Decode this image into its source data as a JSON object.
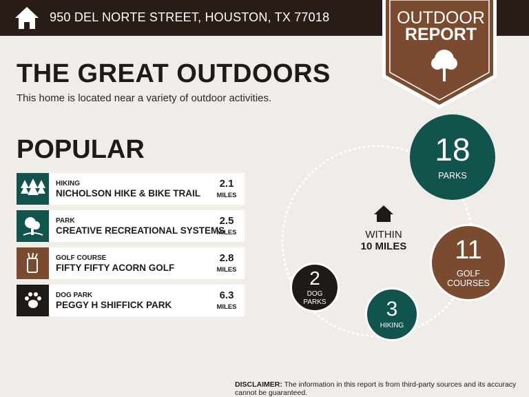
{
  "header": {
    "address": "950 DEL NORTE STREET, HOUSTON, TX 77018"
  },
  "badge": {
    "line1": "OUTDOOR",
    "line2": "REPORT"
  },
  "title": "THE GREAT OUTDOORS",
  "subtitle": "This home is located near a variety of outdoor activities.",
  "popular": {
    "heading": "POPULAR",
    "items": [
      {
        "category": "HIKING",
        "name": "NICHOLSON HIKE & BIKE TRAIL",
        "distance": 2.1,
        "unit": "MILES"
      },
      {
        "category": "PARK",
        "name": "CREATIVE RECREATIONAL SYSTEMS",
        "distance": 2.5,
        "unit": "MILES"
      },
      {
        "category": "GOLF COURSE",
        "name": "FIFTY FIFTY ACORN GOLF",
        "distance": 2.8,
        "unit": "MILES"
      },
      {
        "category": "DOG PARK",
        "name": "PEGGY H SHIFFICK PARK",
        "distance": 6.3,
        "unit": "MILES"
      }
    ]
  },
  "summary": {
    "center": {
      "line1": "WITHIN",
      "line2": "10 MILES"
    },
    "circles": [
      {
        "count": 18,
        "label": "PARKS"
      },
      {
        "count": 11,
        "label": "GOLF COURSES"
      },
      {
        "count": 3,
        "label": "HIKING"
      },
      {
        "count": 2,
        "label": "DOG PARKS"
      }
    ]
  },
  "disclaimer": {
    "label": "DISCLAIMER:",
    "text": "The information in this report is from third-party sources and its accuracy cannot be guaranteed."
  }
}
